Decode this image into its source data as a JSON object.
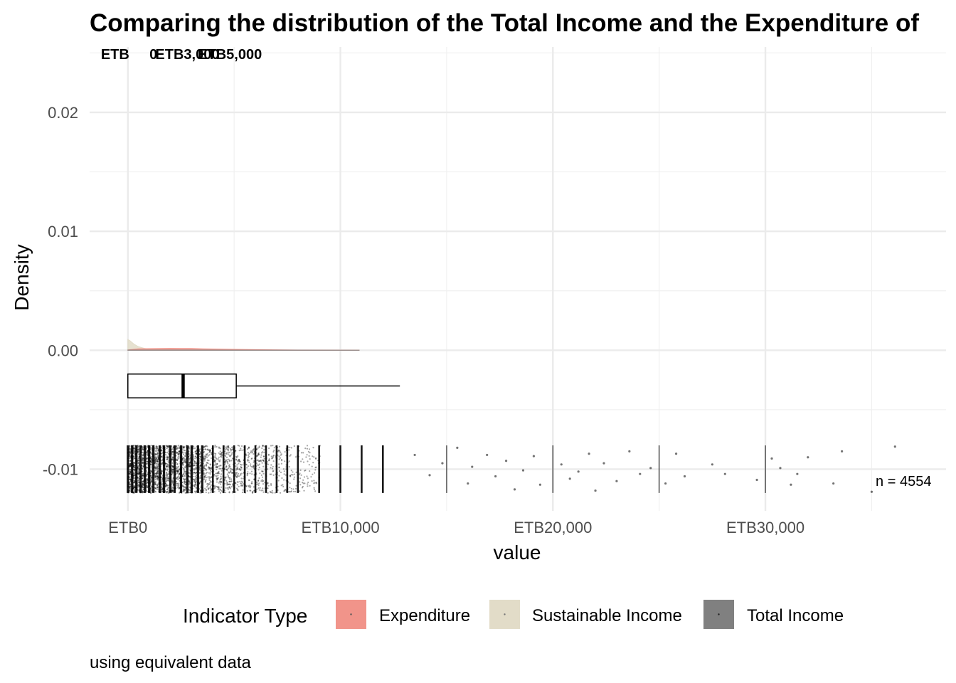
{
  "chart_data": {
    "type": "area",
    "title": "Comparing the distribution of the Total Income and the Expenditure of",
    "xlabel": "value",
    "ylabel": "Density",
    "caption": "using equivalent data",
    "xlim": [
      -1800,
      38500
    ],
    "ylim": [
      -0.0135,
      0.0255
    ],
    "x_ticks": [
      {
        "value": 0,
        "label": "ETB0"
      },
      {
        "value": 10000,
        "label": "ETB10,000"
      },
      {
        "value": 20000,
        "label": "ETB20,000"
      },
      {
        "value": 30000,
        "label": "ETB30,000"
      }
    ],
    "x_minor_ticks": [
      5000,
      15000,
      25000,
      35000
    ],
    "y_ticks": [
      {
        "value": -0.01,
        "label": "-0.01"
      },
      {
        "value": 0.0,
        "label": "0.00"
      },
      {
        "value": 0.01,
        "label": "0.01"
      },
      {
        "value": 0.02,
        "label": "0.02"
      }
    ],
    "y_minor_ticks": [
      -0.005,
      0.005,
      0.015,
      0.025
    ],
    "legend": {
      "title": "Indicator Type",
      "position": "bottom",
      "entries": [
        {
          "name": "Expenditure",
          "color": "#f1948a"
        },
        {
          "name": "Sustainable Income",
          "color": "#e2dcc8"
        },
        {
          "name": "Total Income",
          "color": "#808080"
        }
      ]
    },
    "series": [
      {
        "name": "Sustainable Income",
        "color": "#e2dcc8",
        "x": [
          0,
          100,
          300,
          500,
          800,
          1000,
          2000,
          4000,
          6000,
          8000,
          10900
        ],
        "y": [
          0.0009,
          0.0008,
          0.0005,
          0.0003,
          0.00015,
          8e-05,
          6e-05,
          4e-05,
          2e-05,
          1e-05,
          0.0
        ]
      },
      {
        "name": "Expenditure",
        "color": "#f1948a",
        "x": [
          0,
          500,
          1000,
          2000,
          3000,
          3500,
          5000,
          6300,
          8000,
          10900
        ],
        "y": [
          3e-05,
          0.00012,
          0.00014,
          0.00016,
          0.00015,
          0.00012,
          8e-05,
          5e-05,
          2e-05,
          0.0
        ]
      },
      {
        "name": "Total Income",
        "color": "#808080",
        "x": [
          0,
          3000,
          6000,
          10900
        ],
        "y": [
          2e-05,
          2e-05,
          1e-05,
          0.0
        ]
      }
    ],
    "boxplot": {
      "y_center": -0.003,
      "y_half_height": 0.001,
      "min": 0,
      "q1": 0,
      "median": 2600,
      "q3": 5100,
      "whisker_high": 12800
    },
    "jitter_points": {
      "n": 4554,
      "y_range": [
        -0.012,
        -0.008
      ],
      "ribs": [
        0,
        200,
        400,
        600,
        800,
        1000,
        1200,
        1500,
        1700,
        2000,
        2200,
        2500,
        2800,
        3000,
        3300,
        3500,
        4000,
        4500,
        5000,
        5500,
        6000,
        6500,
        7000,
        7500,
        8000,
        9000,
        10000,
        11000,
        12000,
        15000,
        20000,
        25000,
        30000
      ],
      "outliers": [
        [
          13500,
          -0.0088
        ],
        [
          14200,
          -0.0105
        ],
        [
          14800,
          -0.0095
        ],
        [
          15500,
          -0.0082
        ],
        [
          16000,
          -0.0112
        ],
        [
          16200,
          -0.0098
        ],
        [
          16900,
          -0.0088
        ],
        [
          17300,
          -0.0106
        ],
        [
          17800,
          -0.0093
        ],
        [
          18200,
          -0.0117
        ],
        [
          18600,
          -0.0101
        ],
        [
          19100,
          -0.0089
        ],
        [
          19400,
          -0.0113
        ],
        [
          20400,
          -0.0096
        ],
        [
          20800,
          -0.0108
        ],
        [
          21200,
          -0.0102
        ],
        [
          21700,
          -0.0087
        ],
        [
          22000,
          -0.0118
        ],
        [
          22400,
          -0.0095
        ],
        [
          23000,
          -0.011
        ],
        [
          23600,
          -0.0085
        ],
        [
          24100,
          -0.0104
        ],
        [
          24600,
          -0.0099
        ],
        [
          25300,
          -0.0112
        ],
        [
          25800,
          -0.0087
        ],
        [
          26200,
          -0.0106
        ],
        [
          27500,
          -0.0096
        ],
        [
          28100,
          -0.0104
        ],
        [
          29600,
          -0.0109
        ],
        [
          30300,
          -0.0091
        ],
        [
          30700,
          -0.0099
        ],
        [
          31200,
          -0.0113
        ],
        [
          31500,
          -0.0104
        ],
        [
          32000,
          -0.009
        ],
        [
          33200,
          -0.0112
        ],
        [
          33600,
          -0.0085
        ],
        [
          35000,
          -0.0119
        ],
        [
          36100,
          -0.0081
        ]
      ]
    },
    "annotations": [
      {
        "text": "ETB",
        "x": -600,
        "y": 0.0249
      },
      {
        "text": "0",
        "x": 1200,
        "y": 0.0249
      },
      {
        "text": "ETB3,000",
        "x": 2800,
        "y": 0.0249
      },
      {
        "text": "ETB5,000",
        "x": 4800,
        "y": 0.0249
      },
      {
        "text": "n = 4554",
        "x": 36500,
        "y": -0.011
      }
    ]
  }
}
